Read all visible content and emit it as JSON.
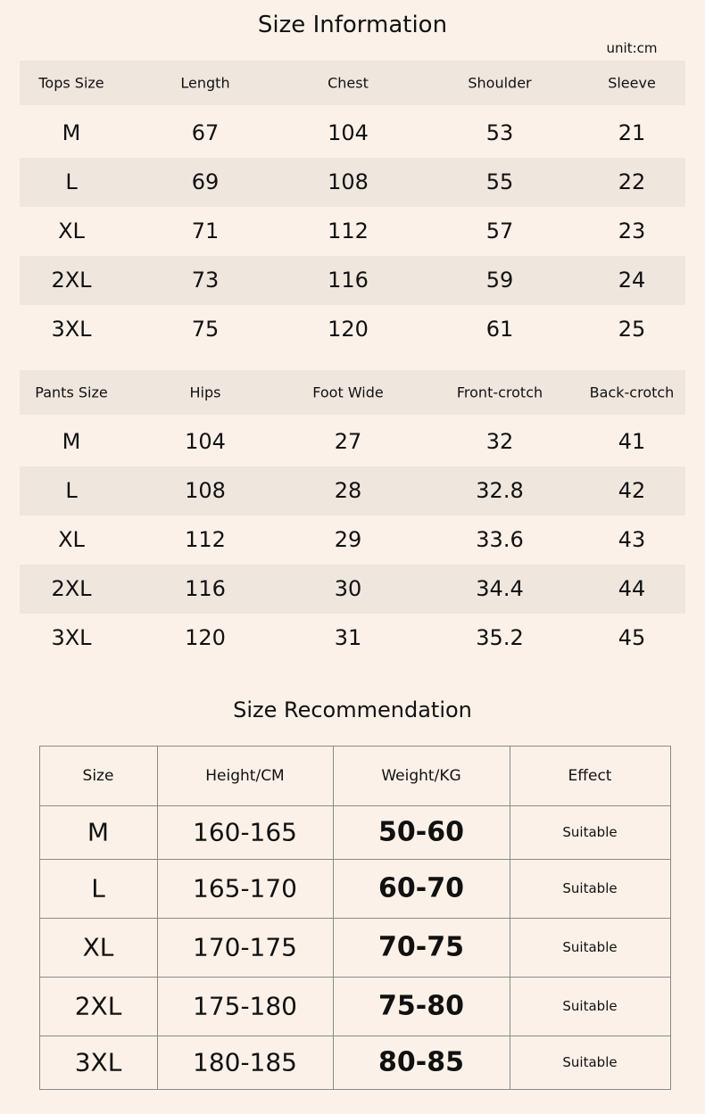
{
  "header": {
    "title": "Size Information",
    "unit": "unit:cm"
  },
  "tops": {
    "columns": [
      "Tops Size",
      "Length",
      "Chest",
      "Shoulder",
      "Sleeve"
    ],
    "rows": [
      [
        "M",
        "67",
        "104",
        "53",
        "21"
      ],
      [
        "L",
        "69",
        "108",
        "55",
        "22"
      ],
      [
        "XL",
        "71",
        "112",
        "57",
        "23"
      ],
      [
        "2XL",
        "73",
        "116",
        "59",
        "24"
      ],
      [
        "3XL",
        "75",
        "120",
        "61",
        "25"
      ]
    ]
  },
  "pants": {
    "columns": [
      "Pants Size",
      "Hips",
      "Foot Wide",
      "Front-crotch",
      "Back-crotch"
    ],
    "rows": [
      [
        "M",
        "104",
        "27",
        "32",
        "41"
      ],
      [
        "L",
        "108",
        "28",
        "32.8",
        "42"
      ],
      [
        "XL",
        "112",
        "29",
        "33.6",
        "43"
      ],
      [
        "2XL",
        "116",
        "30",
        "34.4",
        "44"
      ],
      [
        "3XL",
        "120",
        "31",
        "35.2",
        "45"
      ]
    ]
  },
  "recommendation": {
    "title": "Size Recommendation",
    "columns": [
      "Size",
      "Height/CM",
      "Weight/KG",
      "Effect"
    ],
    "rows": [
      [
        "M",
        "160-165",
        "50-60",
        "Suitable"
      ],
      [
        "L",
        "165-170",
        "60-70",
        "Suitable"
      ],
      [
        "XL",
        "170-175",
        "70-75",
        "Suitable"
      ],
      [
        "2XL",
        "175-180",
        "75-80",
        "Suitable"
      ],
      [
        "3XL",
        "180-185",
        "80-85",
        "Suitable"
      ]
    ]
  }
}
